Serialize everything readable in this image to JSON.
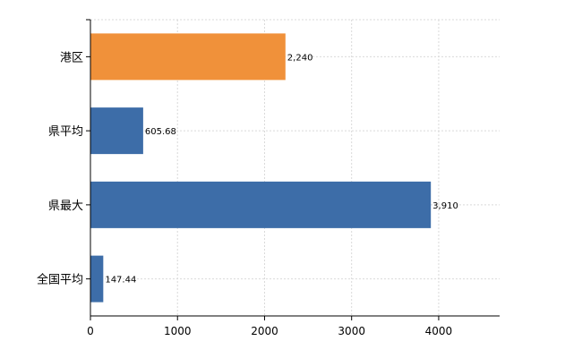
{
  "chart_data": {
    "type": "bar",
    "orientation": "horizontal",
    "categories": [
      "港区",
      "県平均",
      "県最大",
      "全国平均"
    ],
    "values": [
      2240,
      605.68,
      3910,
      147.44
    ],
    "data_labels": [
      "2,240",
      "605.68",
      "3,910",
      "147.44"
    ],
    "bar_colors": [
      "#F0913A",
      "#3D6DA8",
      "#3D6DA8",
      "#3D6DA8"
    ],
    "xlim": [
      0,
      4700
    ],
    "xticks": [
      0,
      1000,
      2000,
      3000,
      4000
    ],
    "xtick_labels": [
      "0",
      "1000",
      "2000",
      "3000",
      "4000"
    ],
    "title": "",
    "xlabel": "",
    "ylabel": "",
    "grid": true,
    "legend": "none"
  }
}
